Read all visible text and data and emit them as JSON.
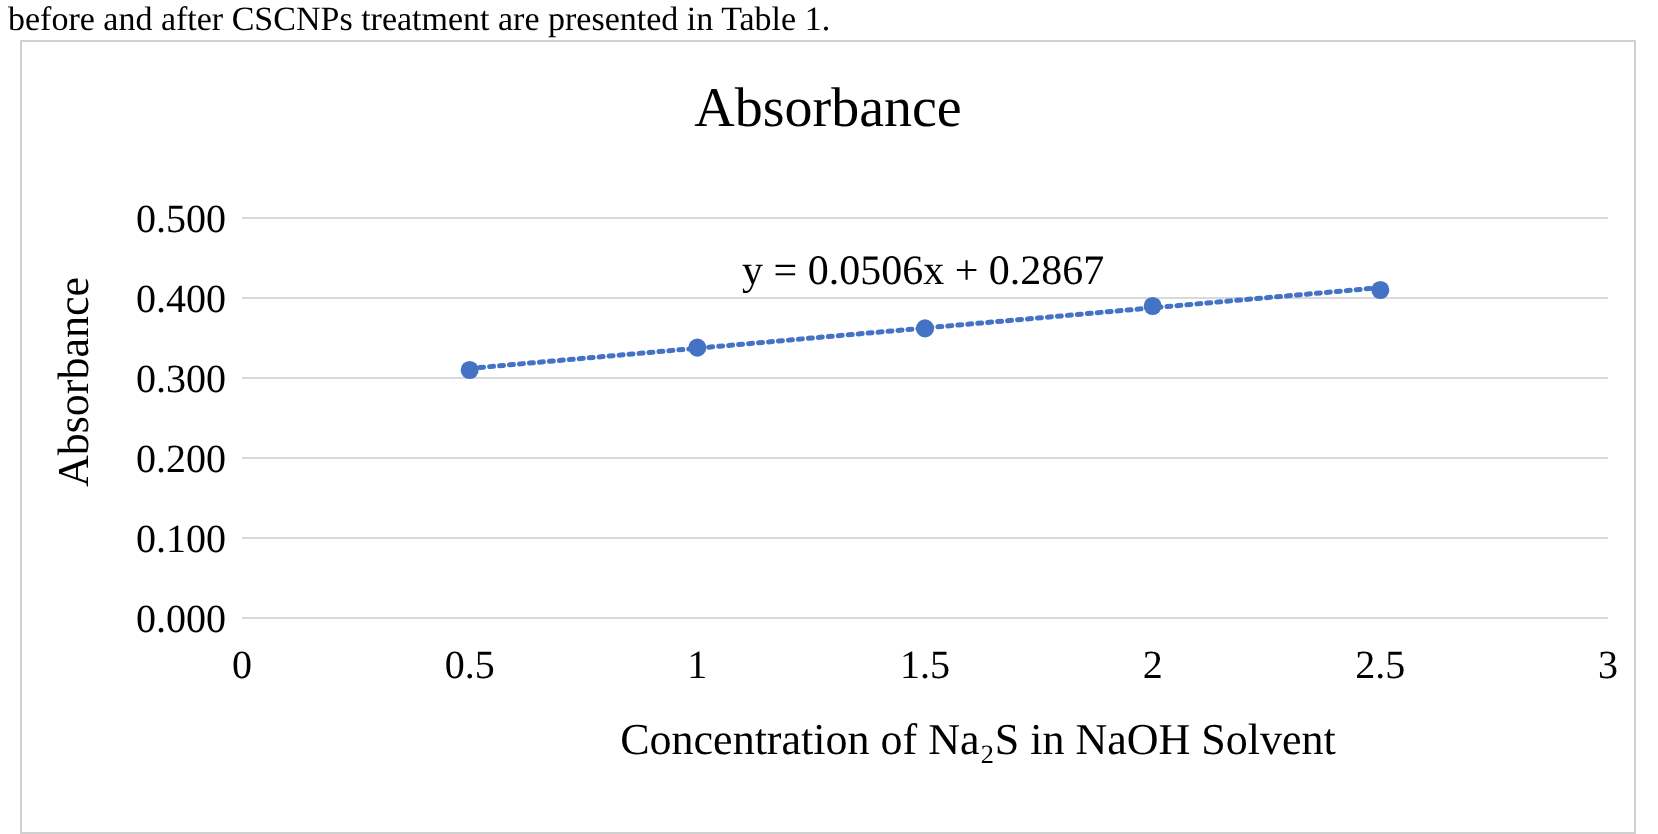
{
  "chart_data": {
    "type": "scatter",
    "title": "Absorbance",
    "xlabel": "Concentration of Na₂S in NaOH Solvent",
    "ylabel": "Absorbance",
    "annotations": [
      "before and after CSCNPs treatment are presented in Table 1.",
      "y = 0.0506x + 0.2867"
    ],
    "x": [
      0.5,
      1,
      1.5,
      2,
      2.5
    ],
    "series": [
      {
        "color": "#4472c4",
        "values": [
          0.31,
          0.338,
          0.362,
          0.39,
          0.41
        ],
        "marker": "circle"
      },
      {
        "type": "line",
        "color": "#4472c4",
        "x": [
          0.5,
          2.5
        ],
        "values": [
          0.312,
          0.413
        ],
        "marker": "none",
        "line_style": "dotted"
      }
    ],
    "xlim": [
      0,
      3
    ],
    "xticks": [
      0,
      0.5,
      1,
      1.5,
      2,
      2.5,
      3
    ],
    "ylim": [
      0,
      0.5
    ],
    "yticks": [
      {
        "value": 0,
        "label": "0.000"
      },
      {
        "value": 0.1,
        "label": "0.100"
      },
      {
        "value": 0.2,
        "label": "0.200"
      },
      {
        "value": 0.3,
        "label": "0.300"
      },
      {
        "value": 0.4,
        "label": "0.400"
      },
      {
        "value": 0.5,
        "label": "0.500"
      }
    ],
    "grid": "y"
  }
}
